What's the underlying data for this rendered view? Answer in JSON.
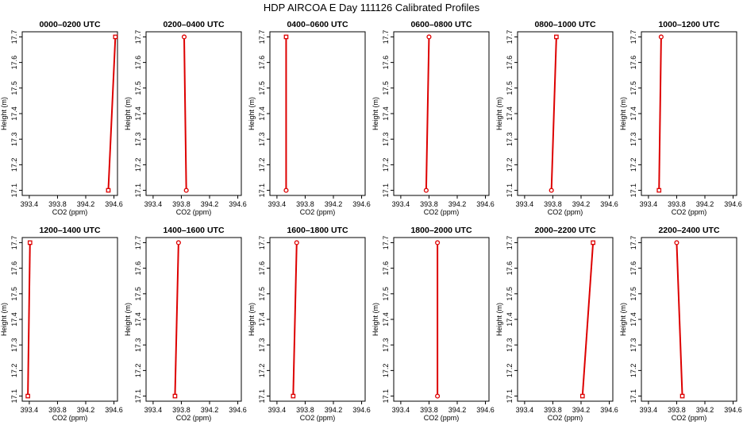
{
  "title": "HDP AIRCOA E  Day 111126  Calibrated Profiles",
  "chart_data": [
    {
      "type": "line",
      "title": "0000–0200 UTC",
      "xlabel": "CO2 (ppm)",
      "ylabel": "Height (m)",
      "xlim": [
        393.3,
        394.65
      ],
      "ylim": [
        17.08,
        17.72
      ],
      "xticks": [
        "393.4",
        "393.8",
        "394.2",
        "394.6"
      ],
      "yticks": [
        "17.1",
        "17.2",
        "17.3",
        "17.4",
        "17.5",
        "17.6",
        "17.7"
      ],
      "series": [
        {
          "points": [
            {
              "x": 394.52,
              "y": 17.1,
              "marker": "square"
            },
            {
              "x": 394.62,
              "y": 17.7,
              "marker": "square"
            }
          ]
        }
      ]
    },
    {
      "type": "line",
      "title": "0200–0400 UTC",
      "xlabel": "CO2 (ppm)",
      "ylabel": "Height (m)",
      "xlim": [
        393.3,
        394.65
      ],
      "ylim": [
        17.08,
        17.72
      ],
      "xticks": [
        "393.4",
        "393.8",
        "394.2",
        "394.6"
      ],
      "yticks": [
        "17.1",
        "17.2",
        "17.3",
        "17.4",
        "17.5",
        "17.6",
        "17.7"
      ],
      "series": [
        {
          "points": [
            {
              "x": 393.87,
              "y": 17.1,
              "marker": "circle"
            },
            {
              "x": 393.84,
              "y": 17.7,
              "marker": "circle"
            }
          ]
        }
      ]
    },
    {
      "type": "line",
      "title": "0400–0600 UTC",
      "xlabel": "CO2 (ppm)",
      "ylabel": "Height (m)",
      "xlim": [
        393.3,
        394.65
      ],
      "ylim": [
        17.08,
        17.72
      ],
      "xticks": [
        "393.4",
        "393.8",
        "394.2",
        "394.6"
      ],
      "yticks": [
        "17.1",
        "17.2",
        "17.3",
        "17.4",
        "17.5",
        "17.6",
        "17.7"
      ],
      "series": [
        {
          "points": [
            {
              "x": 393.53,
              "y": 17.1,
              "marker": "circle"
            },
            {
              "x": 393.53,
              "y": 17.7,
              "marker": "square"
            }
          ]
        }
      ]
    },
    {
      "type": "line",
      "title": "0600–0800 UTC",
      "xlabel": "CO2 (ppm)",
      "ylabel": "Height (m)",
      "xlim": [
        393.3,
        394.65
      ],
      "ylim": [
        17.08,
        17.72
      ],
      "xticks": [
        "393.4",
        "393.8",
        "394.2",
        "394.6"
      ],
      "yticks": [
        "17.1",
        "17.2",
        "17.3",
        "17.4",
        "17.5",
        "17.6",
        "17.7"
      ],
      "series": [
        {
          "points": [
            {
              "x": 393.76,
              "y": 17.1,
              "marker": "circle"
            },
            {
              "x": 393.8,
              "y": 17.7,
              "marker": "circle"
            }
          ]
        }
      ]
    },
    {
      "type": "line",
      "title": "0800–1000 UTC",
      "xlabel": "CO2 (ppm)",
      "ylabel": "Height (m)",
      "xlim": [
        393.3,
        394.65
      ],
      "ylim": [
        17.08,
        17.72
      ],
      "xticks": [
        "393.4",
        "393.8",
        "394.2",
        "394.6"
      ],
      "yticks": [
        "17.1",
        "17.2",
        "17.3",
        "17.4",
        "17.5",
        "17.6",
        "17.7"
      ],
      "series": [
        {
          "points": [
            {
              "x": 393.78,
              "y": 17.1,
              "marker": "circle"
            },
            {
              "x": 393.85,
              "y": 17.7,
              "marker": "square"
            }
          ]
        }
      ]
    },
    {
      "type": "line",
      "title": "1000–1200 UTC",
      "xlabel": "CO2 (ppm)",
      "ylabel": "Height (m)",
      "xlim": [
        393.3,
        394.65
      ],
      "ylim": [
        17.08,
        17.72
      ],
      "xticks": [
        "393.4",
        "393.8",
        "394.2",
        "394.6"
      ],
      "yticks": [
        "17.1",
        "17.2",
        "17.3",
        "17.4",
        "17.5",
        "17.6",
        "17.7"
      ],
      "series": [
        {
          "points": [
            {
              "x": 393.55,
              "y": 17.1,
              "marker": "square"
            },
            {
              "x": 393.58,
              "y": 17.7,
              "marker": "circle"
            }
          ]
        }
      ]
    },
    {
      "type": "line",
      "title": "1200–1400 UTC",
      "xlabel": "CO2 (ppm)",
      "ylabel": "Height (m)",
      "xlim": [
        393.3,
        394.65
      ],
      "ylim": [
        17.08,
        17.72
      ],
      "xticks": [
        "393.4",
        "393.8",
        "394.2",
        "394.6"
      ],
      "yticks": [
        "17.1",
        "17.2",
        "17.3",
        "17.4",
        "17.5",
        "17.6",
        "17.7"
      ],
      "series": [
        {
          "points": [
            {
              "x": 393.38,
              "y": 17.1,
              "marker": "square"
            },
            {
              "x": 393.41,
              "y": 17.7,
              "marker": "square"
            }
          ]
        }
      ]
    },
    {
      "type": "line",
      "title": "1400–1600 UTC",
      "xlabel": "CO2 (ppm)",
      "ylabel": "Height (m)",
      "xlim": [
        393.3,
        394.65
      ],
      "ylim": [
        17.08,
        17.72
      ],
      "xticks": [
        "393.4",
        "393.8",
        "394.2",
        "394.6"
      ],
      "yticks": [
        "17.1",
        "17.2",
        "17.3",
        "17.4",
        "17.5",
        "17.6",
        "17.7"
      ],
      "series": [
        {
          "points": [
            {
              "x": 393.71,
              "y": 17.1,
              "marker": "square"
            },
            {
              "x": 393.76,
              "y": 17.7,
              "marker": "circle"
            }
          ]
        }
      ]
    },
    {
      "type": "line",
      "title": "1600–1800 UTC",
      "xlabel": "CO2 (ppm)",
      "ylabel": "Height (m)",
      "xlim": [
        393.3,
        394.65
      ],
      "ylim": [
        17.08,
        17.72
      ],
      "xticks": [
        "393.4",
        "393.8",
        "394.2",
        "394.6"
      ],
      "yticks": [
        "17.1",
        "17.2",
        "17.3",
        "17.4",
        "17.5",
        "17.6",
        "17.7"
      ],
      "series": [
        {
          "points": [
            {
              "x": 393.63,
              "y": 17.1,
              "marker": "square"
            },
            {
              "x": 393.68,
              "y": 17.7,
              "marker": "circle"
            }
          ]
        }
      ]
    },
    {
      "type": "line",
      "title": "1800–2000 UTC",
      "xlabel": "CO2 (ppm)",
      "ylabel": "Height (m)",
      "xlim": [
        393.3,
        394.65
      ],
      "ylim": [
        17.08,
        17.72
      ],
      "xticks": [
        "393.4",
        "393.8",
        "394.2",
        "394.6"
      ],
      "yticks": [
        "17.1",
        "17.2",
        "17.3",
        "17.4",
        "17.5",
        "17.6",
        "17.7"
      ],
      "series": [
        {
          "points": [
            {
              "x": 393.92,
              "y": 17.1,
              "marker": "circle"
            },
            {
              "x": 393.92,
              "y": 17.7,
              "marker": "circle"
            }
          ]
        }
      ]
    },
    {
      "type": "line",
      "title": "2000–2200 UTC",
      "xlabel": "CO2 (ppm)",
      "ylabel": "Height (m)",
      "xlim": [
        393.3,
        394.65
      ],
      "ylim": [
        17.08,
        17.72
      ],
      "xticks": [
        "393.4",
        "393.8",
        "394.2",
        "394.6"
      ],
      "yticks": [
        "17.1",
        "17.2",
        "17.3",
        "17.4",
        "17.5",
        "17.6",
        "17.7"
      ],
      "series": [
        {
          "points": [
            {
              "x": 394.22,
              "y": 17.1,
              "marker": "square"
            },
            {
              "x": 394.37,
              "y": 17.7,
              "marker": "square"
            }
          ]
        }
      ]
    },
    {
      "type": "line",
      "title": "2200–2400 UTC",
      "xlabel": "CO2 (ppm)",
      "ylabel": "Height (m)",
      "xlim": [
        393.3,
        394.65
      ],
      "ylim": [
        17.08,
        17.72
      ],
      "xticks": [
        "393.4",
        "393.8",
        "394.2",
        "394.6"
      ],
      "yticks": [
        "17.1",
        "17.2",
        "17.3",
        "17.4",
        "17.5",
        "17.6",
        "17.7"
      ],
      "series": [
        {
          "points": [
            {
              "x": 393.88,
              "y": 17.1,
              "marker": "square"
            },
            {
              "x": 393.8,
              "y": 17.7,
              "marker": "circle"
            }
          ]
        }
      ]
    }
  ],
  "colors": {
    "series": "#dd0000",
    "axis": "#000000"
  }
}
